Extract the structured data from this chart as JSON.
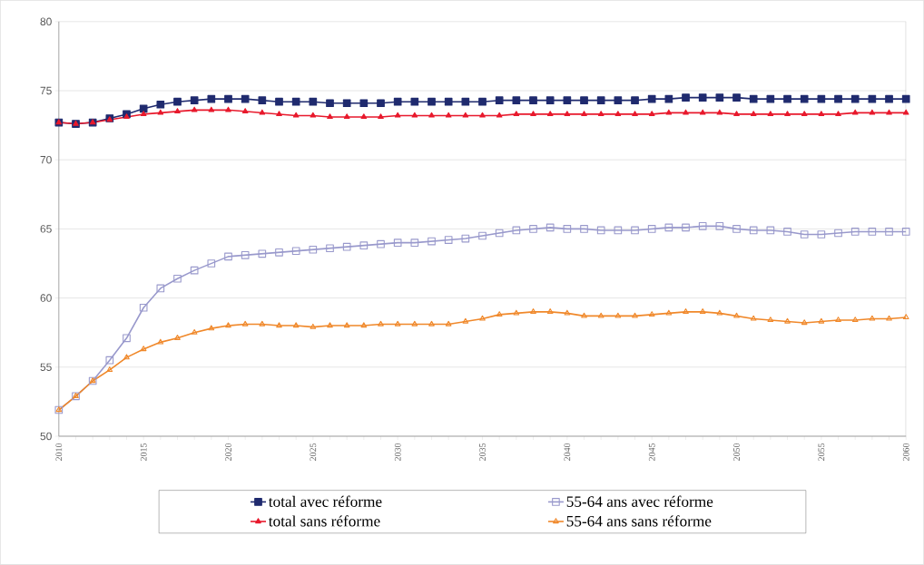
{
  "chart_data": {
    "type": "line",
    "x": [
      2010,
      2011,
      2012,
      2013,
      2014,
      2015,
      2016,
      2017,
      2018,
      2019,
      2020,
      2021,
      2022,
      2023,
      2024,
      2025,
      2026,
      2027,
      2028,
      2029,
      2030,
      2031,
      2032,
      2033,
      2034,
      2035,
      2036,
      2037,
      2038,
      2039,
      2040,
      2041,
      2042,
      2043,
      2044,
      2045,
      2046,
      2047,
      2048,
      2049,
      2050,
      2051,
      2052,
      2053,
      2054,
      2055,
      2056,
      2057,
      2058,
      2059,
      2060
    ],
    "series": [
      {
        "name": "total avec réforme",
        "color": "#1f2a6e",
        "marker": "square",
        "values": [
          72.7,
          72.6,
          72.7,
          73.0,
          73.3,
          73.7,
          74.0,
          74.2,
          74.3,
          74.4,
          74.4,
          74.4,
          74.3,
          74.2,
          74.2,
          74.2,
          74.1,
          74.1,
          74.1,
          74.1,
          74.2,
          74.2,
          74.2,
          74.2,
          74.2,
          74.2,
          74.3,
          74.3,
          74.3,
          74.3,
          74.3,
          74.3,
          74.3,
          74.3,
          74.3,
          74.4,
          74.4,
          74.5,
          74.5,
          74.5,
          74.5,
          74.4,
          74.4,
          74.4,
          74.4,
          74.4,
          74.4,
          74.4,
          74.4,
          74.4,
          74.4
        ]
      },
      {
        "name": "55-64 ans avec réforme",
        "color": "#9999cc",
        "marker": "square",
        "values": [
          51.9,
          52.9,
          54.0,
          55.5,
          57.1,
          59.3,
          60.7,
          61.4,
          62.0,
          62.5,
          63.0,
          63.1,
          63.2,
          63.3,
          63.4,
          63.5,
          63.6,
          63.7,
          63.8,
          63.9,
          64.0,
          64.0,
          64.1,
          64.2,
          64.3,
          64.5,
          64.7,
          64.9,
          65.0,
          65.1,
          65.0,
          65.0,
          64.9,
          64.9,
          64.9,
          65.0,
          65.1,
          65.1,
          65.2,
          65.2,
          65.0,
          64.9,
          64.9,
          64.8,
          64.6,
          64.6,
          64.7,
          64.8,
          64.8,
          64.8,
          64.8
        ]
      },
      {
        "name": "total sans réforme",
        "color": "#e8192c",
        "marker": "triangle",
        "values": [
          72.7,
          72.6,
          72.7,
          72.9,
          73.1,
          73.3,
          73.4,
          73.5,
          73.6,
          73.6,
          73.6,
          73.5,
          73.4,
          73.3,
          73.2,
          73.2,
          73.1,
          73.1,
          73.1,
          73.1,
          73.2,
          73.2,
          73.2,
          73.2,
          73.2,
          73.2,
          73.2,
          73.3,
          73.3,
          73.3,
          73.3,
          73.3,
          73.3,
          73.3,
          73.3,
          73.3,
          73.4,
          73.4,
          73.4,
          73.4,
          73.3,
          73.3,
          73.3,
          73.3,
          73.3,
          73.3,
          73.3,
          73.4,
          73.4,
          73.4,
          73.4
        ]
      },
      {
        "name": "55-64 ans sans réforme",
        "color": "#f0882a",
        "marker": "triangle",
        "values": [
          51.9,
          52.9,
          54.0,
          54.8,
          55.7,
          56.3,
          56.8,
          57.1,
          57.5,
          57.8,
          58.0,
          58.1,
          58.1,
          58.0,
          58.0,
          57.9,
          58.0,
          58.0,
          58.0,
          58.1,
          58.1,
          58.1,
          58.1,
          58.1,
          58.3,
          58.5,
          58.8,
          58.9,
          59.0,
          59.0,
          58.9,
          58.7,
          58.7,
          58.7,
          58.7,
          58.8,
          58.9,
          59.0,
          59.0,
          58.9,
          58.7,
          58.5,
          58.4,
          58.3,
          58.2,
          58.3,
          58.4,
          58.4,
          58.5,
          58.5,
          58.6
        ]
      }
    ],
    "xlim": [
      2010,
      2060
    ],
    "xticks": [
      2010,
      {
        "value": 2011,
        "label": null
      },
      {
        "value": 2012,
        "label": null
      },
      {
        "value": 2013,
        "label": null
      },
      {
        "value": 2014,
        "label": null
      },
      2015,
      {
        "value": 2016,
        "label": null
      },
      {
        "value": 2017,
        "label": null
      },
      {
        "value": 2018,
        "label": null
      },
      {
        "value": 2019,
        "label": null
      },
      2020,
      {
        "value": 2021,
        "label": null
      },
      {
        "value": 2022,
        "label": null
      },
      {
        "value": 2023,
        "label": null
      },
      {
        "value": 2024,
        "label": null
      },
      2025,
      {
        "value": 2026,
        "label": null
      },
      {
        "value": 2027,
        "label": null
      },
      {
        "value": 2028,
        "label": null
      },
      {
        "value": 2029,
        "label": null
      },
      2030,
      {
        "value": 2031,
        "label": null
      },
      {
        "value": 2032,
        "label": null
      },
      {
        "value": 2033,
        "label": null
      },
      {
        "value": 2034,
        "label": null
      },
      2035,
      {
        "value": 2036,
        "label": null
      },
      {
        "value": 2037,
        "label": null
      },
      {
        "value": 2038,
        "label": null
      },
      {
        "value": 2039,
        "label": null
      },
      2040,
      {
        "value": 2041,
        "label": null
      },
      {
        "value": 2042,
        "label": null
      },
      {
        "value": 2043,
        "label": null
      },
      {
        "value": 2044,
        "label": null
      },
      2045,
      {
        "value": 2046,
        "label": null
      },
      {
        "value": 2047,
        "label": null
      },
      {
        "value": 2048,
        "label": null
      },
      {
        "value": 2049,
        "label": null
      },
      2050,
      {
        "value": 2051,
        "label": null
      },
      {
        "value": 2052,
        "label": null
      },
      {
        "value": 2053,
        "label": null
      },
      {
        "value": 2054,
        "label": null
      },
      2055,
      {
        "value": 2056,
        "label": null
      },
      {
        "value": 2057,
        "label": null
      },
      {
        "value": 2058,
        "label": null
      },
      {
        "value": 2059,
        "label": null
      },
      2060
    ],
    "ylim": [
      50,
      80
    ],
    "yticks": [
      50,
      55,
      60,
      65,
      70,
      75,
      80
    ],
    "grid": "y",
    "legend": "bottom",
    "line_style": "solid"
  }
}
